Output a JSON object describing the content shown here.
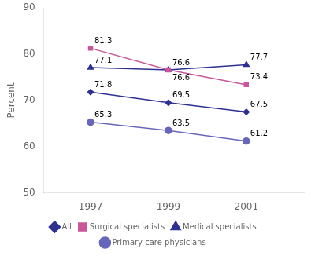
{
  "chart_data": {
    "type": "line",
    "x": [
      1997,
      1999,
      2001
    ],
    "series": [
      {
        "name": "All",
        "color": "#2E3191",
        "marker": "diamond",
        "values": [
          71.8,
          69.5,
          67.5
        ]
      },
      {
        "name": "Surgical specialists",
        "color": "#C8579A",
        "marker": "square",
        "values": [
          81.3,
          76.6,
          73.4
        ]
      },
      {
        "name": "Medical specialists",
        "color": "#2E3191",
        "marker": "triangle",
        "values": [
          77.1,
          76.6,
          77.7
        ]
      },
      {
        "name": "Primary care physicians",
        "color": "#6666BB",
        "marker": "circle",
        "values": [
          65.3,
          63.5,
          61.2
        ]
      }
    ],
    "ylabel": "Percent",
    "xlim": [
      1995.8,
      2002.5
    ],
    "xticks": [
      1997,
      1999,
      2001
    ],
    "ylim": [
      50,
      90
    ],
    "yticks": [
      50,
      60,
      70,
      80,
      90
    ],
    "grid": false,
    "legend": "bottom",
    "data_labels": true
  }
}
